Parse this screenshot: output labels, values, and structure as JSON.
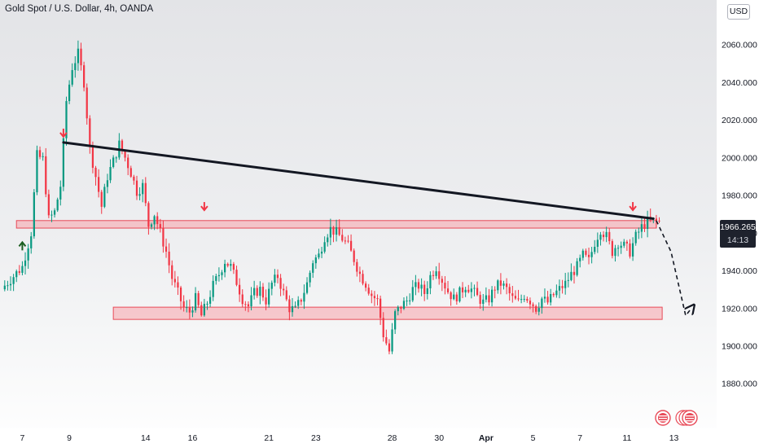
{
  "title": "Gold Spot / U.S. Dollar, 4h, OANDA",
  "currency": "USD",
  "last_price": "1966.265",
  "countdown": "14:13",
  "chart_data": {
    "type": "candlestick",
    "symbol": "Gold Spot / U.S. Dollar",
    "interval": "4h",
    "source": "OANDA",
    "y_ticks": [
      "2060.000",
      "2040.000",
      "2020.000",
      "2000.000",
      "1980.000",
      "1960.000",
      "1940.000",
      "1920.000",
      "1900.000",
      "1880.000"
    ],
    "y_tick_values": [
      2060,
      2040,
      2020,
      2000,
      1980,
      1960,
      1940,
      1920,
      1900,
      1880
    ],
    "ylim": [
      1869.5,
      2075
    ],
    "x_ticks": [
      "7",
      "9",
      "14",
      "16",
      "21",
      "23",
      "28",
      "30",
      "Apr",
      "5",
      "7",
      "11",
      "13"
    ],
    "x_tick_index": [
      6,
      22,
      48,
      64,
      90,
      106,
      132,
      148,
      164,
      180,
      196,
      212,
      228
    ],
    "xlim": [
      -0.5,
      242
    ],
    "candle_count": 224,
    "anchors": [
      [
        0,
        1932
      ],
      [
        6,
        1942
      ],
      [
        9,
        1960
      ],
      [
        11,
        2001
      ],
      [
        13,
        1999
      ],
      [
        15,
        1967
      ],
      [
        17,
        1971
      ],
      [
        19,
        1985
      ],
      [
        21,
        2030
      ],
      [
        23,
        2048
      ],
      [
        25,
        2055
      ],
      [
        27,
        2040
      ],
      [
        29,
        2005
      ],
      [
        31,
        1990
      ],
      [
        33,
        1974
      ],
      [
        35,
        1990
      ],
      [
        37,
        1998
      ],
      [
        39,
        2007
      ],
      [
        41,
        2000
      ],
      [
        43,
        1992
      ],
      [
        45,
        1982
      ],
      [
        47,
        1985
      ],
      [
        49,
        1964
      ],
      [
        51,
        1970
      ],
      [
        53,
        1960
      ],
      [
        55,
        1950
      ],
      [
        57,
        1936
      ],
      [
        59,
        1928
      ],
      [
        61,
        1920
      ],
      [
        63,
        1918
      ],
      [
        65,
        1925
      ],
      [
        67,
        1916
      ],
      [
        69,
        1923
      ],
      [
        71,
        1932
      ],
      [
        73,
        1938
      ],
      [
        75,
        1945
      ],
      [
        77,
        1942
      ],
      [
        79,
        1934
      ],
      [
        81,
        1925
      ],
      [
        83,
        1921
      ],
      [
        85,
        1928
      ],
      [
        87,
        1930
      ],
      [
        89,
        1924
      ],
      [
        91,
        1933
      ],
      [
        93,
        1937
      ],
      [
        95,
        1928
      ],
      [
        97,
        1920
      ],
      [
        99,
        1919
      ],
      [
        101,
        1925
      ],
      [
        103,
        1933
      ],
      [
        105,
        1945
      ],
      [
        107,
        1948
      ],
      [
        109,
        1958
      ],
      [
        111,
        1962
      ],
      [
        113,
        1960
      ],
      [
        115,
        1957
      ],
      [
        117,
        1953
      ],
      [
        119,
        1946
      ],
      [
        121,
        1938
      ],
      [
        123,
        1933
      ],
      [
        125,
        1927
      ],
      [
        127,
        1924
      ],
      [
        129,
        1906
      ],
      [
        131,
        1897
      ],
      [
        133,
        1917
      ],
      [
        135,
        1921
      ],
      [
        137,
        1924
      ],
      [
        139,
        1930
      ],
      [
        141,
        1932
      ],
      [
        143,
        1928
      ],
      [
        145,
        1937
      ],
      [
        147,
        1942
      ],
      [
        149,
        1935
      ],
      [
        151,
        1929
      ],
      [
        153,
        1925
      ],
      [
        155,
        1928
      ],
      [
        157,
        1932
      ],
      [
        159,
        1930
      ],
      [
        161,
        1926
      ],
      [
        163,
        1923
      ],
      [
        165,
        1925
      ],
      [
        167,
        1931
      ],
      [
        169,
        1933
      ],
      [
        171,
        1930
      ],
      [
        173,
        1925
      ],
      [
        175,
        1923
      ],
      [
        177,
        1927
      ],
      [
        179,
        1924
      ],
      [
        181,
        1920
      ],
      [
        183,
        1925
      ],
      [
        185,
        1923
      ],
      [
        187,
        1927
      ],
      [
        189,
        1930
      ],
      [
        191,
        1933
      ],
      [
        193,
        1938
      ],
      [
        195,
        1942
      ],
      [
        197,
        1948
      ],
      [
        199,
        1945
      ],
      [
        201,
        1955
      ],
      [
        203,
        1962
      ],
      [
        205,
        1958
      ],
      [
        207,
        1950
      ],
      [
        209,
        1955
      ],
      [
        211,
        1953
      ],
      [
        213,
        1950
      ],
      [
        215,
        1958
      ],
      [
        217,
        1963
      ],
      [
        219,
        1966
      ],
      [
        221,
        1966
      ],
      [
        223,
        1966
      ]
    ],
    "resistance_line": {
      "from": [
        20,
        2008
      ],
      "to": [
        221,
        1967.5
      ]
    },
    "resistance_zone": {
      "from_index": 4,
      "to_index": 222,
      "low": 1962.5,
      "high": 1966.5
    },
    "support_zone": {
      "from_index": 37,
      "to_index": 224,
      "low": 1914,
      "high": 1920.5
    },
    "projection": {
      "points": [
        [
          222,
          1966.5
        ],
        [
          227,
          1950
        ],
        [
          232,
          1916
        ],
        [
          234,
          1920
        ]
      ]
    },
    "arrows": [
      {
        "index": 20,
        "price": 2011,
        "direction": "down",
        "color": "#f23645"
      },
      {
        "index": 68,
        "price": 1972,
        "direction": "down",
        "color": "#f23645"
      },
      {
        "index": 214,
        "price": 1972,
        "direction": "down",
        "color": "#f23645"
      },
      {
        "index": 6,
        "price": 1955,
        "direction": "up",
        "color": "#1b5e20"
      }
    ],
    "colors": {
      "up": "#089981",
      "down": "#f23645",
      "zone_fill": "#f7a3aa",
      "zone_stroke": "#e84a58",
      "trendline": "#131722",
      "price_label_bg": "#1e222d",
      "grid": "#f0f3fa",
      "badge_red": "#e84a58"
    },
    "grid": false,
    "legend": "none"
  }
}
